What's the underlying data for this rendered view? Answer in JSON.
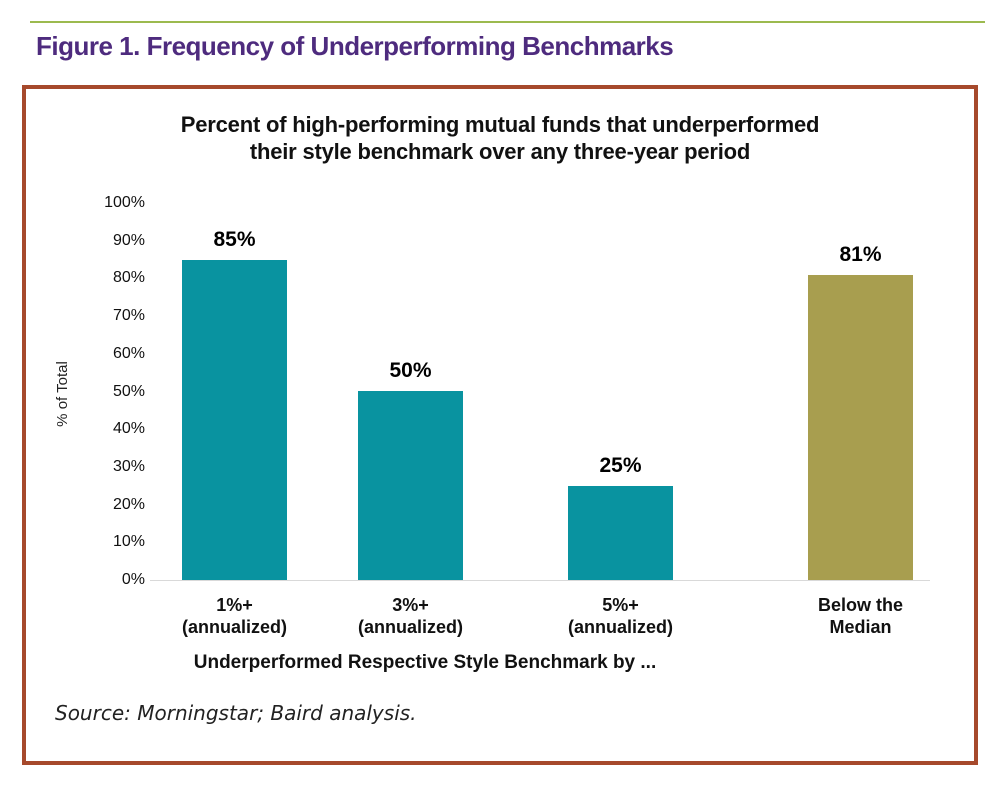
{
  "page": {
    "figure_title": "Figure 1. Frequency of Underperforming Benchmarks"
  },
  "colors": {
    "title_purple": "#4E2B7E",
    "rule_green": "#9CBA4F",
    "panel_border": "#A6492C",
    "bar_teal": "#0993A0",
    "bar_olive": "#A89E4F"
  },
  "chart_data": {
    "type": "bar",
    "title": "Percent of high-performing mutual funds that underperformed their style benchmark over any three-year period",
    "title_lines": [
      "Percent of high-performing mutual funds that underperformed",
      "their style benchmark over any three-year period"
    ],
    "ylabel": "% of Total",
    "xlabel": "Underperformed Respective Style Benchmark by ...",
    "ylim": [
      0,
      100
    ],
    "ytick_step": 10,
    "ytick_labels": [
      "0%",
      "10%",
      "20%",
      "30%",
      "40%",
      "50%",
      "60%",
      "70%",
      "80%",
      "90%",
      "100%"
    ],
    "grid": false,
    "legend": false,
    "categories": [
      [
        "1%+",
        "(annualized)"
      ],
      [
        "3%+",
        "(annualized)"
      ],
      [
        "5%+",
        "(annualized)"
      ],
      [
        "Below the",
        "Median"
      ]
    ],
    "values": [
      85,
      50,
      25,
      81
    ],
    "value_labels": [
      "85%",
      "50%",
      "25%",
      "81%"
    ],
    "bar_colors": [
      "#0993A0",
      "#0993A0",
      "#0993A0",
      "#A89E4F"
    ]
  },
  "source_note": "Source: Morningstar; Baird analysis."
}
